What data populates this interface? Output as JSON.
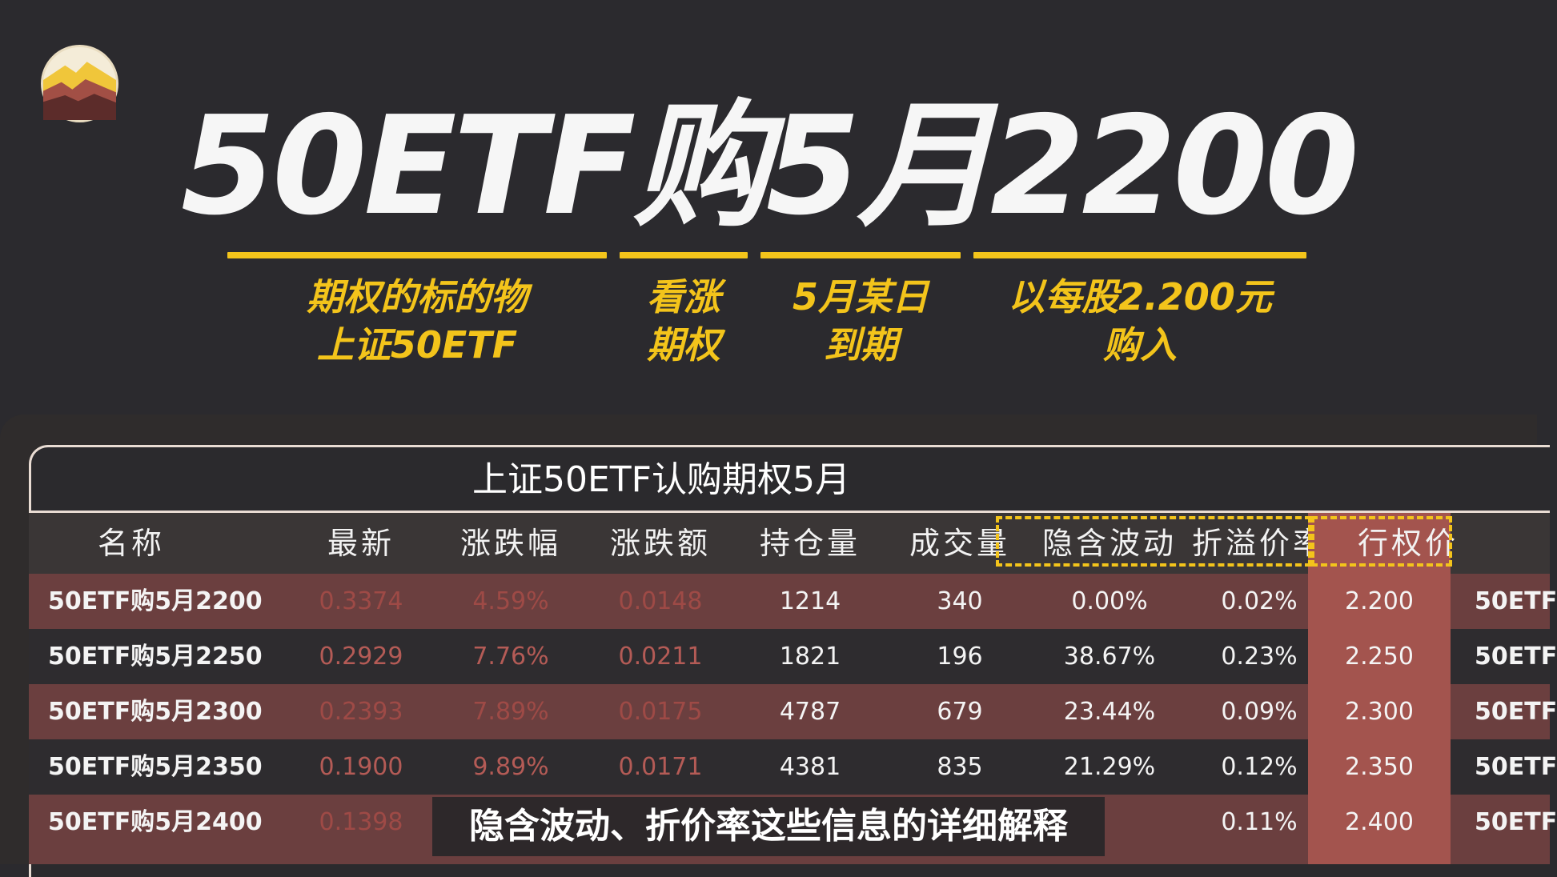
{
  "title": "50ETF购5月2200",
  "explanations": [
    {
      "line1": "期权的标的物",
      "line2": "上证50ETF"
    },
    {
      "line1": "看涨",
      "line2": "期权"
    },
    {
      "line1": "5月某日",
      "line2": "到期"
    },
    {
      "line1": "以每股2.200元",
      "line2": "购入"
    }
  ],
  "table": {
    "title": "上证50ETF认购期权5月",
    "headers": [
      "名称",
      "最新",
      "涨跌幅",
      "涨跌额",
      "持仓量",
      "成交量",
      "隐含波动",
      "折溢价率",
      "行权价"
    ],
    "rows": [
      {
        "name": "50ETF购5月2200",
        "latest": "0.3374",
        "change_pct": "4.59%",
        "change_amt": "0.0148",
        "open_interest": "1214",
        "volume": "340",
        "iv": "0.00%",
        "premium": "0.02%",
        "strike": "2.200",
        "next": "50ETF"
      },
      {
        "name": "50ETF购5月2250",
        "latest": "0.2929",
        "change_pct": "7.76%",
        "change_amt": "0.0211",
        "open_interest": "1821",
        "volume": "196",
        "iv": "38.67%",
        "premium": "0.23%",
        "strike": "2.250",
        "next": "50ETF"
      },
      {
        "name": "50ETF购5月2300",
        "latest": "0.2393",
        "change_pct": "7.89%",
        "change_amt": "0.0175",
        "open_interest": "4787",
        "volume": "679",
        "iv": "23.44%",
        "premium": "0.09%",
        "strike": "2.300",
        "next": "50ETF"
      },
      {
        "name": "50ETF购5月2350",
        "latest": "0.1900",
        "change_pct": "9.89%",
        "change_amt": "0.0171",
        "open_interest": "4381",
        "volume": "835",
        "iv": "21.29%",
        "premium": "0.12%",
        "strike": "2.350",
        "next": "50ETF"
      },
      {
        "name": "50ETF购5月2400",
        "latest": "0.1398",
        "change_pct": "",
        "change_amt": "",
        "open_interest": "",
        "volume": "",
        "iv": "",
        "premium": "0.11%",
        "strike": "2.400",
        "next": "50ETF"
      }
    ]
  },
  "subtitle": "隐含波动、折价率这些信息的详细解释",
  "colors": {
    "accent": "#f3c41b",
    "row_highlight": "#6b3f3f",
    "strike_column": "#a3544e",
    "negative": "#b45b56"
  }
}
